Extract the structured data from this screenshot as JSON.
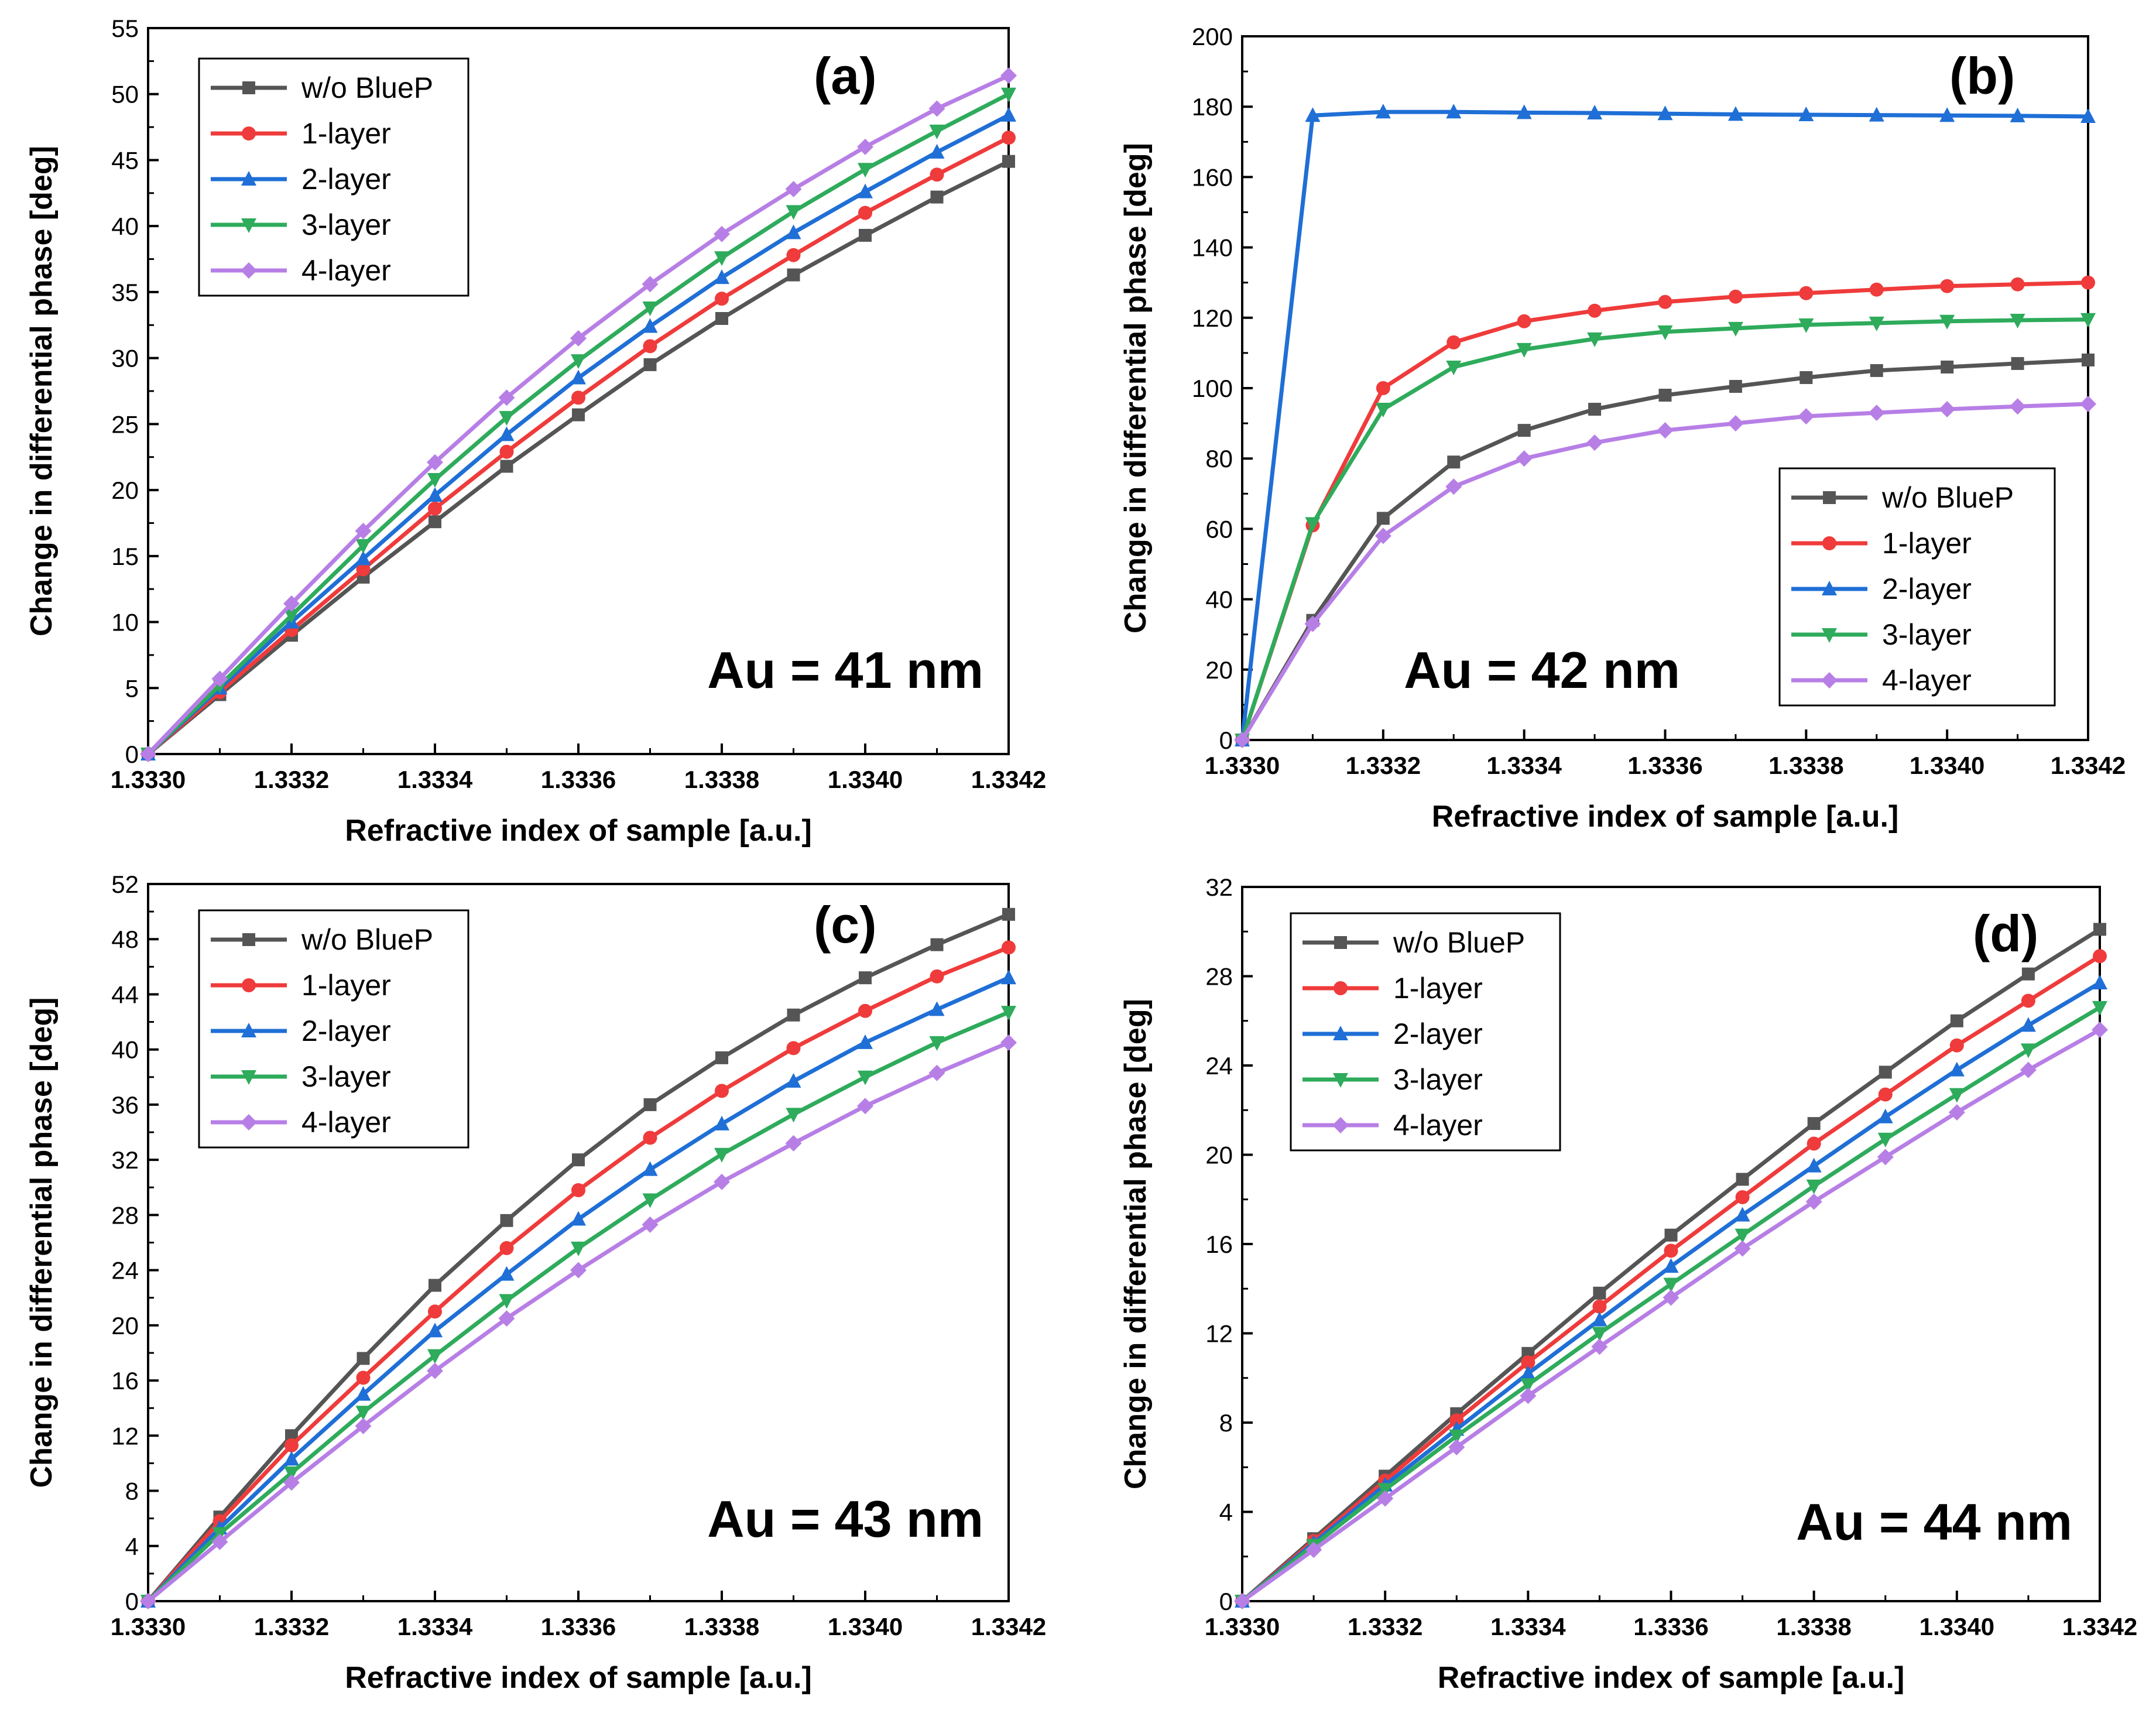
{
  "chart_data": [
    {
      "panel_label": "(a)",
      "annotation": "Au = 41 nm",
      "type": "line",
      "xlabel": "Refractive index of sample [a.u.]",
      "ylabel": "Change in differential phase [deg]",
      "xlim": [
        1.333,
        1.3342
      ],
      "ylim": [
        0,
        55
      ],
      "xticks": [
        "1.3330",
        "1.3332",
        "1.3334",
        "1.3336",
        "1.3338",
        "1.3340",
        "1.3342"
      ],
      "yticks": [
        "0",
        "5",
        "10",
        "15",
        "20",
        "25",
        "30",
        "35",
        "40",
        "45",
        "50",
        "55"
      ],
      "legend_position": "top-left",
      "x": [
        1.333,
        1.3331,
        1.3332,
        1.3333,
        1.3334,
        1.3335,
        1.3336,
        1.3337,
        1.3338,
        1.3339,
        1.334,
        1.3341,
        1.3342
      ],
      "series": [
        {
          "name": "w/o BlueP",
          "color": "#555555",
          "marker": "square",
          "values": [
            0,
            4.5,
            9,
            13.4,
            17.6,
            21.8,
            25.7,
            29.5,
            33,
            36.3,
            39.3,
            42.2,
            44.9
          ]
        },
        {
          "name": "1-layer",
          "color": "#ef3b3b",
          "marker": "circle",
          "values": [
            0,
            4.7,
            9.4,
            14,
            18.6,
            22.9,
            27,
            30.9,
            34.5,
            37.8,
            41,
            43.9,
            46.7
          ]
        },
        {
          "name": "2-layer",
          "color": "#1f6fd6",
          "marker": "triangle-up",
          "values": [
            0,
            5,
            10,
            14.8,
            19.6,
            24.2,
            28.5,
            32.4,
            36.1,
            39.5,
            42.6,
            45.6,
            48.4
          ]
        },
        {
          "name": "3-layer",
          "color": "#2eab5b",
          "marker": "triangle-down",
          "values": [
            0,
            5.2,
            10.5,
            15.8,
            20.8,
            25.5,
            29.8,
            33.8,
            37.6,
            41.1,
            44.3,
            47.2,
            50
          ]
        },
        {
          "name": "4-layer",
          "color": "#b77fe6",
          "marker": "diamond",
          "values": [
            0,
            5.7,
            11.4,
            16.9,
            22.1,
            27,
            31.5,
            35.6,
            39.4,
            42.8,
            46,
            48.9,
            51.4
          ]
        }
      ]
    },
    {
      "panel_label": "(b)",
      "annotation": "Au = 42 nm",
      "type": "line",
      "xlabel": "Refractive index of sample [a.u.]",
      "ylabel": "Change in differential phase [deg]",
      "xlim": [
        1.333,
        1.3342
      ],
      "ylim": [
        0,
        200
      ],
      "xticks": [
        "1.3330",
        "1.3332",
        "1.3334",
        "1.3336",
        "1.3338",
        "1.3340",
        "1.3342"
      ],
      "yticks": [
        "0",
        "20",
        "40",
        "60",
        "80",
        "100",
        "120",
        "140",
        "160",
        "180",
        "200"
      ],
      "legend_position": "bottom-right",
      "x": [
        1.333,
        1.3331,
        1.3332,
        1.3333,
        1.3334,
        1.3335,
        1.3336,
        1.3337,
        1.3338,
        1.3339,
        1.334,
        1.3341,
        1.3342
      ],
      "series": [
        {
          "name": "w/o BlueP",
          "color": "#555555",
          "marker": "square",
          "values": [
            0,
            34,
            63,
            79,
            88,
            94,
            98,
            100.5,
            103,
            105,
            106,
            107,
            108
          ]
        },
        {
          "name": "1-layer",
          "color": "#ef3b3b",
          "marker": "circle",
          "values": [
            0,
            61,
            100,
            113,
            119,
            122,
            124.5,
            126,
            127,
            128,
            129,
            129.5,
            130
          ]
        },
        {
          "name": "2-layer",
          "color": "#1f6fd6",
          "marker": "triangle-up",
          "values": [
            0,
            177.5,
            178.5,
            178.5,
            178.3,
            178.2,
            178,
            177.8,
            177.7,
            177.6,
            177.5,
            177.4,
            177.2
          ]
        },
        {
          "name": "3-layer",
          "color": "#2eab5b",
          "marker": "triangle-down",
          "values": [
            0,
            61.5,
            94,
            106,
            111,
            114,
            116,
            117,
            118,
            118.5,
            119,
            119.3,
            119.5
          ]
        },
        {
          "name": "4-layer",
          "color": "#b77fe6",
          "marker": "diamond",
          "values": [
            0,
            33,
            58,
            72,
            80,
            84.5,
            88,
            90,
            92,
            93,
            94,
            94.8,
            95.5
          ]
        }
      ]
    },
    {
      "panel_label": "(c)",
      "annotation": "Au = 43 nm",
      "type": "line",
      "xlabel": "Refractive index of sample [a.u.]",
      "ylabel": "Change in differential phase [deg]",
      "xlim": [
        1.333,
        1.3342
      ],
      "ylim": [
        0,
        52
      ],
      "xticks": [
        "1.3330",
        "1.3332",
        "1.3334",
        "1.3336",
        "1.3338",
        "1.3340",
        "1.3342"
      ],
      "yticks": [
        "0",
        "4",
        "8",
        "12",
        "16",
        "20",
        "24",
        "28",
        "32",
        "36",
        "40",
        "44",
        "48",
        "52"
      ],
      "legend_position": "top-left",
      "x": [
        1.333,
        1.3331,
        1.3332,
        1.3333,
        1.3334,
        1.3335,
        1.3336,
        1.3337,
        1.3338,
        1.3339,
        1.334,
        1.3341,
        1.3342
      ],
      "series": [
        {
          "name": "w/o BlueP",
          "color": "#555555",
          "marker": "square",
          "values": [
            0,
            6.1,
            12,
            17.6,
            22.9,
            27.6,
            32,
            36,
            39.4,
            42.5,
            45.2,
            47.6,
            49.8
          ]
        },
        {
          "name": "1-layer",
          "color": "#ef3b3b",
          "marker": "circle",
          "values": [
            0,
            5.8,
            11.3,
            16.2,
            21,
            25.6,
            29.8,
            33.6,
            37,
            40.1,
            42.8,
            45.3,
            47.4
          ]
        },
        {
          "name": "2-layer",
          "color": "#1f6fd6",
          "marker": "triangle-up",
          "values": [
            0,
            5.3,
            10.3,
            15,
            19.6,
            23.7,
            27.7,
            31.3,
            34.6,
            37.7,
            40.5,
            42.9,
            45.2
          ]
        },
        {
          "name": "3-layer",
          "color": "#2eab5b",
          "marker": "triangle-down",
          "values": [
            0,
            4.9,
            9.3,
            13.7,
            17.8,
            21.8,
            25.6,
            29.1,
            32.4,
            35.3,
            38,
            40.5,
            42.7
          ]
        },
        {
          "name": "4-layer",
          "color": "#b77fe6",
          "marker": "diamond",
          "values": [
            0,
            4.3,
            8.6,
            12.7,
            16.7,
            20.5,
            24,
            27.3,
            30.4,
            33.2,
            35.9,
            38.3,
            40.5
          ]
        }
      ]
    },
    {
      "panel_label": "(d)",
      "annotation": "Au = 44 nm",
      "type": "line",
      "xlabel": "Refractive index of sample [a.u.]",
      "ylabel": "Change in differential phase [deg]",
      "xlim": [
        1.333,
        1.3342
      ],
      "ylim": [
        0,
        32
      ],
      "xticks": [
        "1.3330",
        "1.3332",
        "1.3334",
        "1.3336",
        "1.3338",
        "1.3340",
        "1.3342"
      ],
      "yticks": [
        "0",
        "4",
        "8",
        "12",
        "16",
        "20",
        "24",
        "28",
        "32"
      ],
      "legend_position": "top-left",
      "x": [
        1.333,
        1.3331,
        1.3332,
        1.3333,
        1.3334,
        1.3335,
        1.3336,
        1.3337,
        1.3338,
        1.3339,
        1.334,
        1.3341,
        1.3342
      ],
      "series": [
        {
          "name": "w/o BlueP",
          "color": "#555555",
          "marker": "square",
          "values": [
            0,
            2.8,
            5.6,
            8.4,
            11.1,
            13.8,
            16.4,
            18.9,
            21.4,
            23.7,
            26,
            28.1,
            30.1
          ]
        },
        {
          "name": "1-layer",
          "color": "#ef3b3b",
          "marker": "circle",
          "values": [
            0,
            2.7,
            5.4,
            8.1,
            10.7,
            13.2,
            15.7,
            18.1,
            20.5,
            22.7,
            24.9,
            26.9,
            28.9
          ]
        },
        {
          "name": "2-layer",
          "color": "#1f6fd6",
          "marker": "triangle-up",
          "values": [
            0,
            2.6,
            5.2,
            7.7,
            10.2,
            12.6,
            15,
            17.3,
            19.5,
            21.7,
            23.8,
            25.8,
            27.7
          ]
        },
        {
          "name": "3-layer",
          "color": "#2eab5b",
          "marker": "triangle-down",
          "values": [
            0,
            2.5,
            5,
            7.4,
            9.7,
            12,
            14.2,
            16.4,
            18.6,
            20.7,
            22.7,
            24.7,
            26.6
          ]
        },
        {
          "name": "4-layer",
          "color": "#b77fe6",
          "marker": "diamond",
          "values": [
            0,
            2.3,
            4.6,
            6.9,
            9.2,
            11.4,
            13.6,
            15.8,
            17.9,
            19.9,
            21.9,
            23.8,
            25.6
          ]
        }
      ]
    }
  ]
}
